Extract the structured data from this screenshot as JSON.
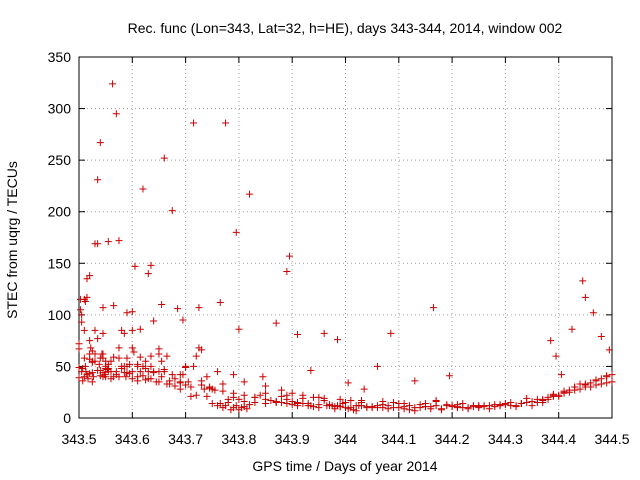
{
  "chart_data": {
    "type": "scatter",
    "title": "Rec. func (Lon=343, Lat=32, h=HE), days 343-344, 2014, window 002",
    "xlabel": "GPS time / Days of year 2014",
    "ylabel": "STEC from uqrg / TECUs",
    "xlim": [
      343.5,
      344.5
    ],
    "ylim": [
      0,
      350
    ],
    "xticks": [
      "343.5",
      "343.6",
      "343.7",
      "343.8",
      "343.9",
      "344",
      "344.1",
      "344.2",
      "344.3",
      "344.4",
      "344.5"
    ],
    "yticks": [
      "0",
      "50",
      "100",
      "150",
      "200",
      "250",
      "300",
      "350"
    ],
    "grid": true,
    "marker": "+",
    "marker_color": "#cc0000",
    "series": [
      {
        "x": [
          343.5,
          343.5,
          343.5,
          343.5,
          343.503,
          343.503,
          343.505,
          343.507,
          343.507,
          343.51,
          343.51,
          343.512,
          343.513,
          343.515,
          343.515,
          343.517,
          343.52,
          343.52,
          343.52,
          343.522,
          343.525,
          343.525,
          343.525,
          343.527,
          343.53,
          343.53,
          343.53,
          343.535,
          343.535,
          343.535,
          343.538,
          343.54,
          343.54,
          343.54,
          343.543,
          343.545,
          343.545,
          343.545,
          343.548,
          343.55,
          343.55,
          343.55,
          343.553,
          343.555,
          343.555,
          343.56,
          343.56,
          343.563,
          343.565,
          343.565,
          343.57,
          343.57,
          343.575,
          343.575,
          343.58,
          343.58,
          343.585,
          343.585,
          343.588,
          343.59,
          343.59,
          343.595,
          343.595,
          343.6,
          343.6,
          343.603,
          343.605,
          343.61,
          343.61,
          343.615,
          343.615,
          343.62,
          343.62,
          343.625,
          343.625,
          343.63,
          343.63,
          343.635,
          343.635,
          343.64,
          343.64,
          343.645,
          343.65,
          343.65,
          343.655,
          343.66,
          343.66,
          343.665,
          343.67,
          343.675,
          343.68,
          343.68,
          343.685,
          343.69,
          343.69,
          343.695,
          343.7,
          343.7,
          343.705,
          343.71,
          343.715,
          343.72,
          343.72,
          343.725,
          343.73,
          343.735,
          343.74,
          343.745,
          343.75,
          343.755,
          343.76,
          343.765,
          343.77,
          343.775,
          343.78,
          343.785,
          343.79,
          343.795,
          343.8,
          343.805,
          343.81,
          343.815,
          343.82,
          343.83,
          343.84,
          343.85,
          343.86,
          343.87,
          343.88,
          343.89,
          343.9,
          343.91,
          343.92,
          343.93,
          343.94,
          343.95,
          343.96,
          343.97,
          343.975,
          343.98,
          343.985,
          343.99,
          343.995,
          344.0,
          344.005,
          344.01,
          344.015,
          344.02,
          344.025,
          344.03,
          344.04,
          344.05,
          344.06,
          344.07,
          344.08,
          344.09,
          344.1,
          344.11,
          344.12,
          344.13,
          344.14,
          344.15,
          344.16,
          344.17,
          344.18,
          344.19,
          344.2,
          344.21,
          344.22,
          344.23,
          344.24,
          344.25,
          344.26,
          344.27,
          344.28,
          344.29,
          344.3,
          344.31,
          344.32,
          344.33,
          344.34,
          344.35,
          344.36,
          344.37,
          344.38,
          344.39,
          344.4,
          344.41,
          344.42,
          344.43,
          344.44,
          344.45,
          344.46,
          344.47,
          344.48,
          344.49,
          344.5,
          343.505,
          343.515,
          343.525,
          343.53,
          343.545,
          343.555,
          343.56,
          343.585,
          343.59,
          343.6,
          343.61,
          343.625,
          343.64,
          343.655,
          343.665,
          343.69,
          343.715,
          343.73,
          343.745,
          343.77,
          343.78,
          343.79,
          343.8,
          343.81,
          343.83,
          343.85,
          343.87,
          343.88,
          343.89,
          343.9,
          343.91,
          343.92,
          343.935,
          343.95,
          343.965,
          343.98,
          344.0,
          344.02,
          344.04,
          344.06,
          344.08,
          344.1,
          344.12,
          344.14,
          344.16,
          344.18,
          344.2,
          344.22,
          344.24,
          344.26,
          344.28,
          344.3,
          344.32,
          344.34,
          344.36,
          344.38,
          344.4,
          344.42,
          344.44,
          344.46,
          344.48,
          344.5,
          343.51,
          343.52,
          343.54,
          343.55,
          343.57,
          343.59,
          343.61,
          343.63,
          343.65,
          343.67,
          343.69,
          343.71,
          343.73,
          343.75,
          343.77,
          343.79,
          343.81,
          343.83,
          343.85,
          343.87,
          343.89,
          343.91,
          343.93,
          343.95,
          343.97,
          343.99,
          344.01,
          344.03,
          344.05,
          344.07,
          344.09,
          344.11,
          344.13,
          344.15,
          344.17,
          344.19,
          344.21,
          344.23,
          344.25,
          344.27,
          344.29,
          344.31,
          344.33,
          344.35,
          344.37,
          344.39,
          344.41,
          344.43,
          344.45,
          344.47,
          344.49,
          343.51,
          343.525,
          343.545,
          343.555,
          343.575,
          343.58,
          343.6,
          343.62,
          343.635,
          343.65,
          343.66,
          343.7,
          343.74,
          343.76,
          343.79,
          343.81,
          343.85,
          343.88,
          343.9,
          343.92,
          343.94,
          343.96,
          343.99,
          344.03,
          344.07,
          344.11,
          344.15,
          344.17,
          344.21,
          344.25,
          344.29,
          344.33,
          344.37,
          344.39,
          344.41,
          344.43,
          344.45,
          344.47,
          344.49
        ],
        "y": [
          72,
          67,
          49,
          39,
          115,
          105,
          93,
          48,
          36,
          115,
          85,
          50,
          45,
          135,
          117,
          38,
          75,
          62,
          57,
          68,
          65,
          54,
          44,
          40,
          169,
          85,
          62,
          231,
          77,
          46,
          52,
          267,
          58,
          41,
          62,
          107,
          58,
          44,
          42,
          55,
          50,
          40,
          47,
          171,
          48,
          55,
          45,
          324,
          40,
          59,
          295,
          45,
          68,
          40,
          50,
          85,
          44,
          82,
          40,
          50,
          102,
          52,
          43,
          45,
          38,
          64,
          147,
          50,
          40,
          59,
          45,
          41,
          222,
          55,
          37,
          140,
          45,
          38,
          50,
          94,
          45,
          35,
          45,
          67,
          40,
          252,
          47,
          33,
          33,
          201,
          31,
          38,
          106,
          35,
          28,
          42,
          49,
          32,
          35,
          21,
          286,
          60,
          22,
          107,
          66,
          28,
          21,
          29,
          14,
          27,
          12,
          14,
          10,
          12,
          15,
          8,
          10,
          12,
          8,
          10,
          11,
          9,
          13,
          20,
          22,
          24,
          17,
          15,
          21,
          22,
          16,
          14,
          19,
          12,
          11,
          20,
          17,
          13,
          12,
          9,
          12,
          11,
          14,
          10,
          9,
          17,
          8,
          7,
          12,
          15,
          11,
          10,
          12,
          13,
          9,
          15,
          10,
          11,
          8,
          7,
          13,
          11,
          9,
          17,
          8,
          12,
          11,
          10,
          14,
          9,
          12,
          10,
          11,
          9,
          11,
          12,
          13,
          12,
          11,
          14,
          19,
          12,
          15,
          17,
          18,
          23,
          21,
          25,
          27,
          30,
          33,
          32,
          34,
          36,
          38,
          40,
          42,
          45,
          42,
          35,
          55,
          40,
          45,
          38,
          50,
          58,
          85,
          52,
          48,
          44,
          55,
          60,
          42,
          50,
          36,
          30,
          33,
          18,
          20,
          18,
          16,
          15,
          14,
          16,
          15,
          14,
          13,
          12,
          14,
          12,
          10,
          12,
          11,
          15,
          12,
          10,
          10,
          12,
          14,
          12,
          10,
          11,
          9,
          12,
          10,
          11,
          12,
          13,
          14,
          12,
          15,
          18,
          20,
          22,
          25,
          28,
          30,
          33,
          35,
          40,
          43,
          46,
          48,
          42,
          44,
          36,
          38,
          35,
          36,
          34,
          30,
          32,
          28,
          26,
          24,
          22,
          20,
          18,
          16,
          18,
          15,
          14,
          13,
          12,
          11,
          10,
          12,
          11,
          10,
          10,
          9,
          10,
          11,
          12,
          13,
          11,
          10,
          11,
          12,
          13,
          15,
          14,
          16,
          18,
          21,
          24,
          27,
          30,
          32,
          34,
          58,
          55,
          62,
          52,
          58,
          48,
          68,
          50,
          60,
          62,
          45,
          50,
          40,
          45,
          42,
          35,
          31,
          27,
          24,
          22,
          20,
          19,
          18,
          17,
          16,
          14,
          14,
          16,
          13,
          12,
          12,
          14,
          15,
          22,
          26,
          30,
          33,
          37,
          41
        ]
      },
      {
        "x": [
          343.505,
          343.512,
          343.52,
          343.535,
          343.545,
          343.565,
          343.575,
          343.6,
          343.615,
          343.635,
          343.655,
          343.675,
          343.695,
          343.725,
          343.765,
          343.775,
          343.795,
          343.8,
          343.82,
          343.845,
          343.87,
          343.89,
          343.895,
          343.91,
          343.935,
          343.96,
          343.985,
          344.005,
          344.035,
          344.06,
          344.085,
          344.13,
          344.165,
          344.195,
          344.385,
          344.395,
          344.405,
          344.425,
          344.445,
          344.45,
          344.465,
          344.48,
          344.495
        ],
        "y": [
          100,
          113,
          138,
          169,
          82,
          109,
          172,
          103,
          86,
          148,
          110,
          42,
          95,
          68,
          112,
          286,
          180,
          86,
          217,
          40,
          92,
          142,
          157,
          81,
          46,
          82,
          76,
          34,
          28,
          50,
          82,
          36,
          107,
          41,
          75,
          60,
          42,
          86,
          133,
          117,
          102,
          79,
          66
        ]
      }
    ]
  }
}
